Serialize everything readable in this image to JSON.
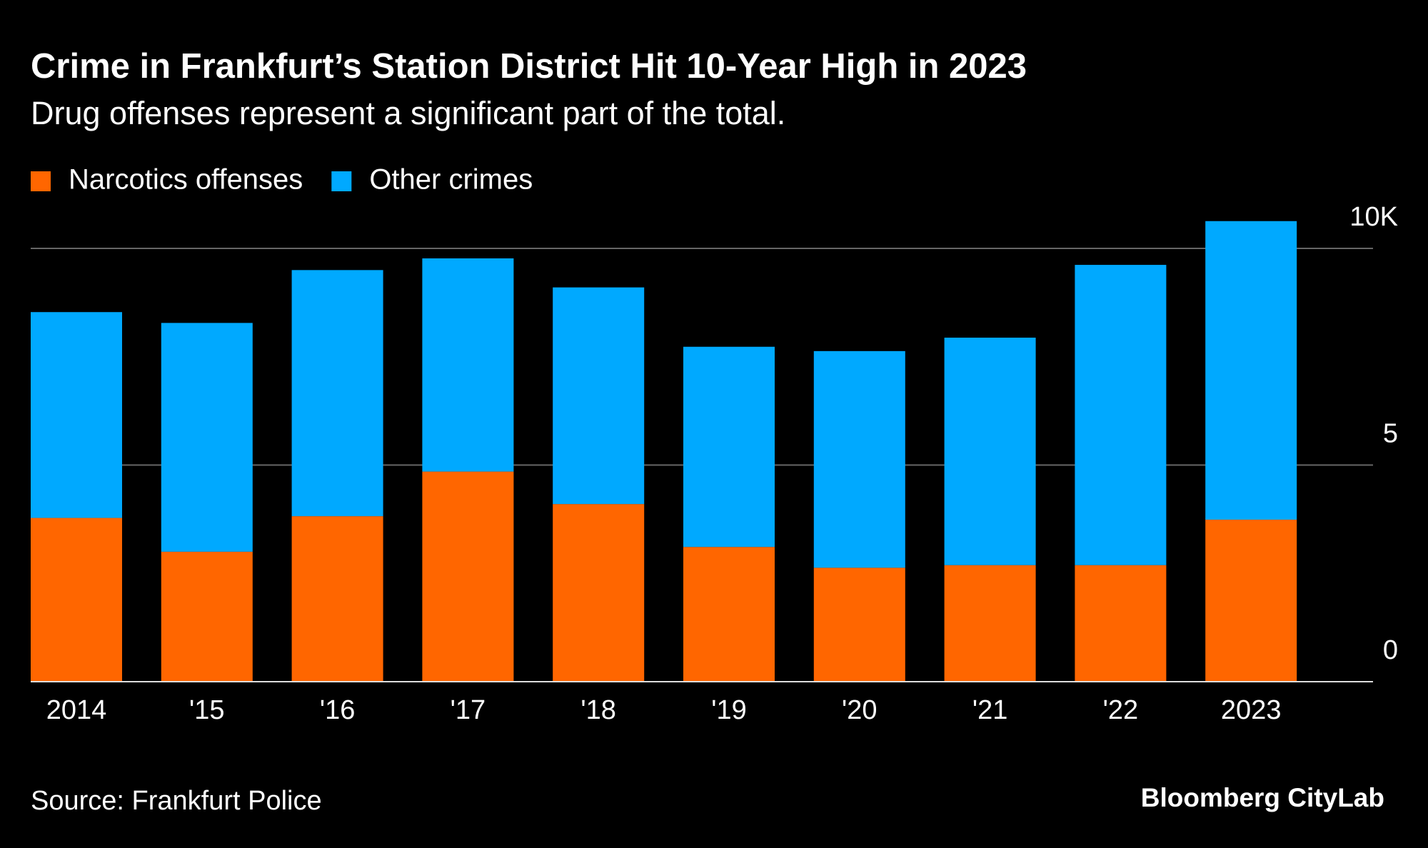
{
  "chart_data": {
    "type": "stacked_bar",
    "title": "Crime in Frankfurt’s Station District Hit 10-Year High in 2023",
    "subtitle": "Drug offenses represent a significant part of the total.",
    "categories": [
      "2014",
      "'15",
      "'16",
      "'17",
      "'18",
      "'19",
      "'20",
      "'21",
      "'22",
      "2023"
    ],
    "series": [
      {
        "name": "Narcotics offenses",
        "color": "#ff6600",
        "values": [
          3.78,
          3.0,
          3.82,
          4.85,
          4.1,
          3.11,
          2.63,
          2.69,
          2.69,
          3.74
        ]
      },
      {
        "name": "Other crimes",
        "color": "#00a9ff",
        "values": [
          4.75,
          5.28,
          5.68,
          4.92,
          5.0,
          4.62,
          5.0,
          5.25,
          6.93,
          6.89
        ]
      }
    ],
    "ylim": [
      0,
      11
    ],
    "yticks": [
      0,
      5,
      {
        "value": 10,
        "label": "10K"
      }
    ],
    "grid": true,
    "source": "Source: Frankfurt Police",
    "brand": "Bloomberg CityLab"
  }
}
